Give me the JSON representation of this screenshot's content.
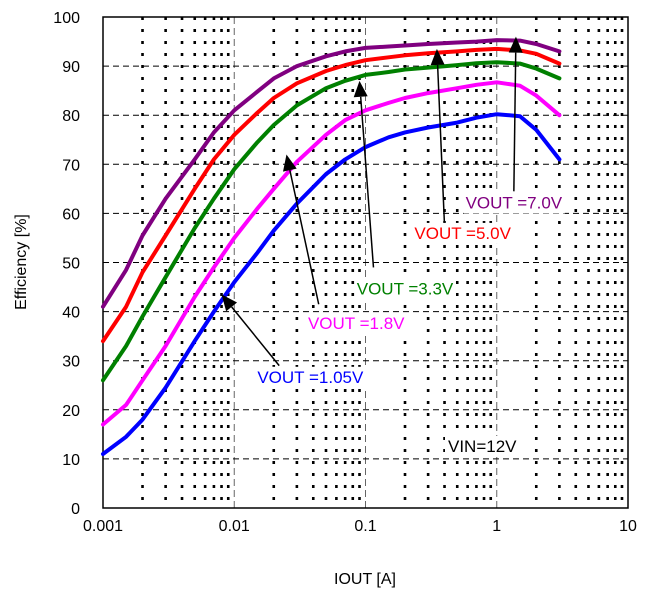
{
  "chart_data": {
    "type": "line",
    "xscale": "log",
    "xlim": [
      0.001,
      10
    ],
    "ylim": [
      0,
      100
    ],
    "xticks": [
      0.001,
      0.01,
      0.1,
      1,
      10
    ],
    "xtick_labels": [
      "0.001",
      "0.01",
      "0.1",
      "1",
      "10"
    ],
    "yticks": [
      0,
      10,
      20,
      30,
      40,
      50,
      60,
      70,
      80,
      90,
      100
    ],
    "ytick_labels": [
      "0",
      "10",
      "20",
      "30",
      "40",
      "50",
      "60",
      "70",
      "80",
      "90",
      "100"
    ],
    "xlabel": "IOUT [A]",
    "ylabel": "Efficiency [%]",
    "grid": true,
    "annotation_vin": "VIN=12V",
    "series": [
      {
        "name": "VOUT =1.05V",
        "color": "#0000ff",
        "x": [
          0.001,
          0.0015,
          0.002,
          0.003,
          0.005,
          0.007,
          0.01,
          0.015,
          0.02,
          0.03,
          0.05,
          0.07,
          0.1,
          0.15,
          0.2,
          0.3,
          0.5,
          0.7,
          1,
          1.5,
          2,
          3
        ],
        "y": [
          11,
          14.5,
          18,
          24.5,
          34,
          40,
          46,
          52,
          56.5,
          62,
          68,
          71,
          73.5,
          75.5,
          76.5,
          77.5,
          78.5,
          79.5,
          80.2,
          79.8,
          77,
          71
        ]
      },
      {
        "name": "VOUT =1.8V",
        "color": "#ff00ff",
        "x": [
          0.001,
          0.0015,
          0.002,
          0.003,
          0.005,
          0.007,
          0.01,
          0.015,
          0.02,
          0.03,
          0.05,
          0.07,
          0.1,
          0.15,
          0.2,
          0.3,
          0.5,
          0.7,
          1,
          1.5,
          2,
          3
        ],
        "y": [
          17,
          21,
          26,
          33,
          43,
          49,
          55,
          61,
          65,
          70.5,
          76,
          79,
          81,
          82.5,
          83.5,
          84.5,
          85.5,
          86.2,
          86.7,
          86,
          84,
          80
        ]
      },
      {
        "name": "VOUT =3.3V",
        "color": "#008000",
        "x": [
          0.001,
          0.0015,
          0.002,
          0.003,
          0.005,
          0.007,
          0.01,
          0.015,
          0.02,
          0.03,
          0.05,
          0.07,
          0.1,
          0.15,
          0.2,
          0.3,
          0.5,
          0.7,
          1,
          1.5,
          2,
          3
        ],
        "y": [
          26,
          33,
          39,
          47,
          57,
          63,
          69,
          74.5,
          78,
          82,
          85.5,
          87,
          88.2,
          88.8,
          89.3,
          89.7,
          90.2,
          90.6,
          90.8,
          90.5,
          89.5,
          87.5
        ]
      },
      {
        "name": "VOUT =5.0V",
        "color": "#ff0000",
        "x": [
          0.001,
          0.0015,
          0.002,
          0.003,
          0.005,
          0.007,
          0.01,
          0.015,
          0.02,
          0.03,
          0.05,
          0.07,
          0.1,
          0.15,
          0.2,
          0.3,
          0.5,
          0.7,
          1,
          1.5,
          2,
          3
        ],
        "y": [
          34,
          41,
          48,
          55.5,
          65,
          71,
          76,
          80.5,
          83.5,
          86.5,
          89,
          90.2,
          91.2,
          91.8,
          92.2,
          92.6,
          93,
          93.3,
          93.5,
          93.2,
          92.5,
          90.5
        ]
      },
      {
        "name": "VOUT =7.0V",
        "color": "#800080",
        "x": [
          0.001,
          0.0015,
          0.002,
          0.003,
          0.005,
          0.007,
          0.01,
          0.015,
          0.02,
          0.03,
          0.05,
          0.07,
          0.1,
          0.15,
          0.2,
          0.3,
          0.5,
          0.7,
          1,
          1.5,
          2,
          3
        ],
        "y": [
          41,
          48.5,
          55.5,
          63,
          71,
          76.5,
          81,
          84.8,
          87.5,
          90,
          92,
          93,
          93.7,
          94,
          94.2,
          94.5,
          94.8,
          95,
          95.3,
          95.2,
          94.5,
          93
        ]
      }
    ],
    "labels": [
      {
        "series": 4,
        "text": "VOUT =7.0V",
        "at": [
          1.35,
          61
        ]
      },
      {
        "series": 3,
        "text": "VOUT =5.0V",
        "at": [
          0.55,
          54.8
        ]
      },
      {
        "series": 2,
        "text": "VOUT =3.3V",
        "at": [
          0.2,
          43.5
        ]
      },
      {
        "series": 1,
        "text": "VOUT =1.8V",
        "at": [
          0.085,
          36.5
        ]
      },
      {
        "series": 0,
        "text": "VOUT =1.05V",
        "at": [
          0.038,
          25.5
        ]
      }
    ],
    "arrows": [
      {
        "from": [
          1.35,
          64.5
        ],
        "to": [
          1.4,
          96
        ]
      },
      {
        "from": [
          0.4,
          57.5
        ],
        "to": [
          0.35,
          93.5
        ]
      },
      {
        "from": [
          0.115,
          49
        ],
        "to": [
          0.09,
          87
        ]
      },
      {
        "from": [
          0.044,
          41.5
        ],
        "to": [
          0.025,
          72
        ]
      },
      {
        "from": [
          0.022,
          29
        ],
        "to": [
          0.008,
          43.5
        ]
      }
    ]
  }
}
